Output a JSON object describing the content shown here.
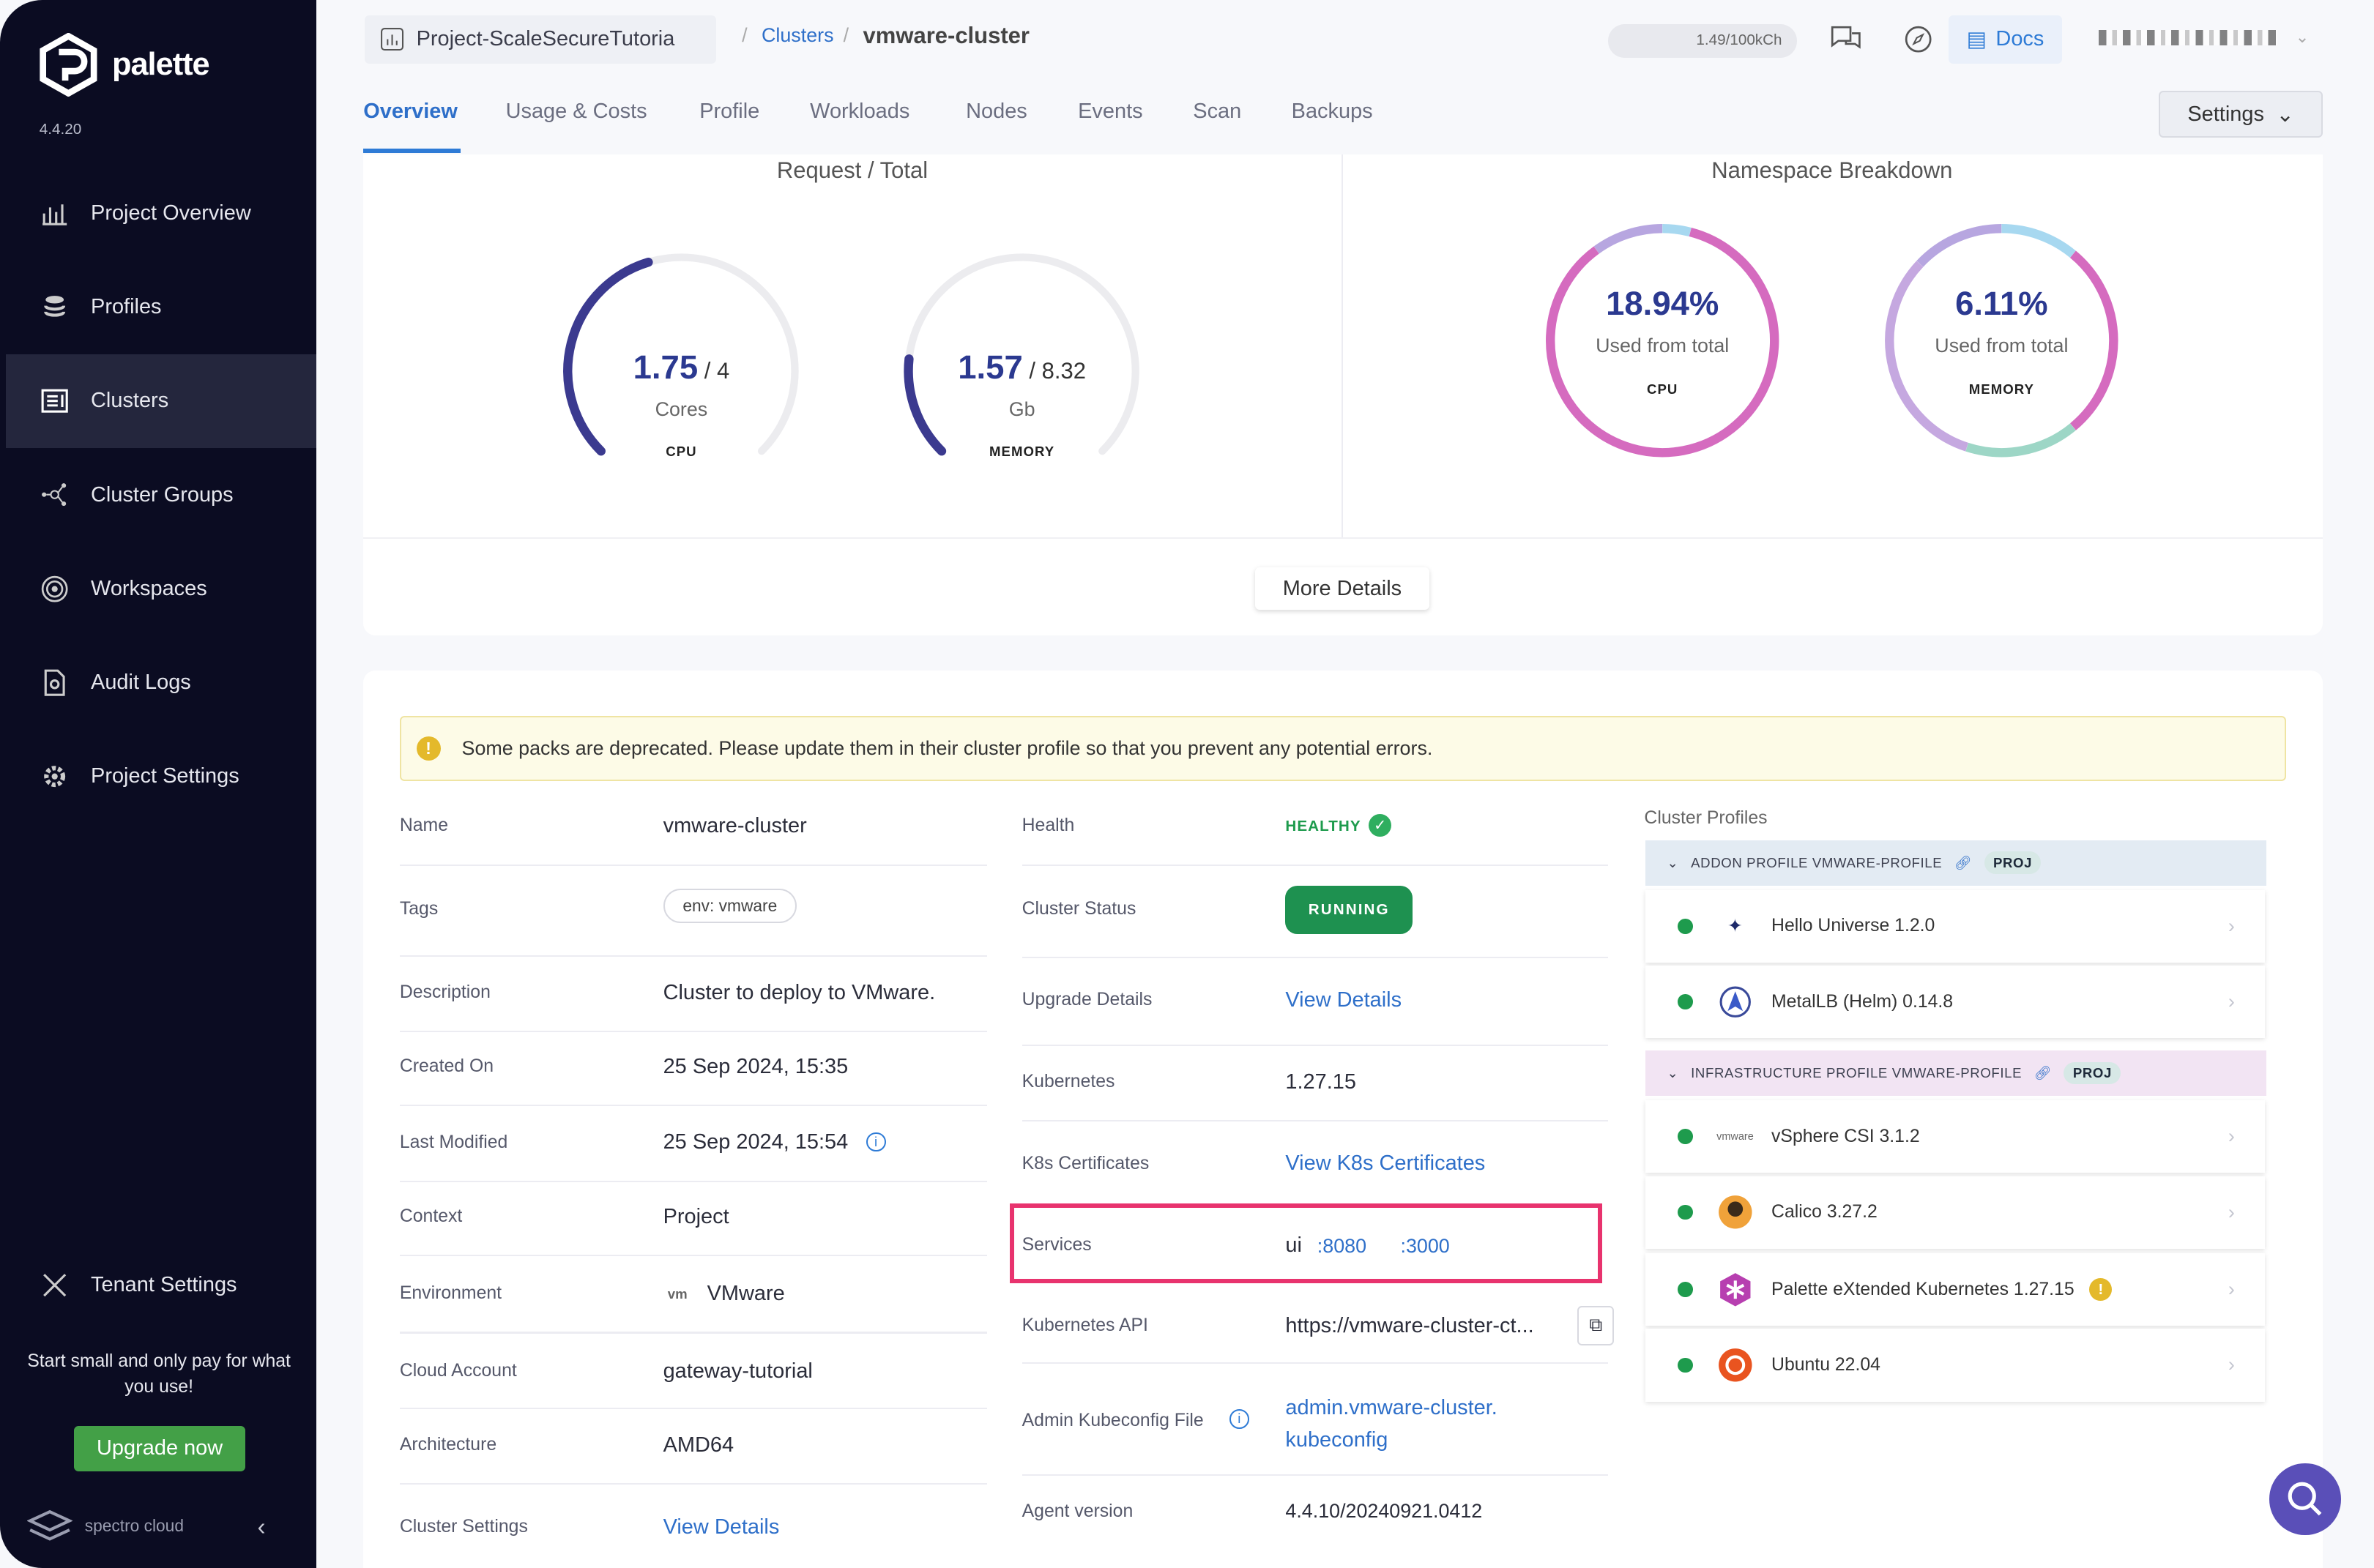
{
  "sidebar": {
    "brand": "palette",
    "version": "4.4.20",
    "items": [
      {
        "label": "Project Overview",
        "icon": "bar-chart-icon"
      },
      {
        "label": "Profiles",
        "icon": "stack-icon"
      },
      {
        "label": "Clusters",
        "icon": "clusters-icon",
        "active": true
      },
      {
        "label": "Cluster Groups",
        "icon": "network-icon"
      },
      {
        "label": "Workspaces",
        "icon": "target-icon"
      },
      {
        "label": "Audit Logs",
        "icon": "document-search-icon"
      },
      {
        "label": "Project Settings",
        "icon": "gear-icon"
      }
    ],
    "tenant_settings": "Tenant Settings",
    "promo": "Start small and only pay for what you use!",
    "upgrade": "Upgrade now",
    "footer_brand": "spectro cloud"
  },
  "header": {
    "project": "Project-ScaleSecureTutoria",
    "breadcrumb_link": "Clusters",
    "breadcrumb_current": "vmware-cluster",
    "usage": "1.49/100kCh",
    "docs": "Docs"
  },
  "tabs": [
    "Overview",
    "Usage & Costs",
    "Profile",
    "Workloads",
    "Nodes",
    "Events",
    "Scan",
    "Backups"
  ],
  "settings_button": "Settings",
  "request_total": {
    "title": "Request / Total",
    "cpu": {
      "used": "1.75",
      "total": "4",
      "unit": "Cores",
      "label": "CPU",
      "fraction": 0.4375
    },
    "memory": {
      "used": "1.57",
      "total": "8.32",
      "unit": "Gb",
      "label": "MEMORY",
      "fraction": 0.189
    }
  },
  "namespace_breakdown": {
    "title": "Namespace Breakdown",
    "cpu": {
      "percent": "18.94%",
      "caption": "Used from total",
      "label": "CPU"
    },
    "memory": {
      "percent": "6.11%",
      "caption": "Used from total",
      "label": "MEMORY"
    }
  },
  "more_details": "More Details",
  "warning": "Some packs are deprecated. Please update them in their cluster profile so that you prevent any potential errors.",
  "details_left": [
    {
      "label": "Name",
      "value": "vmware-cluster"
    },
    {
      "label": "Tags",
      "value": "env: vmware"
    },
    {
      "label": "Description",
      "value": "Cluster to deploy to VMware."
    },
    {
      "label": "Created On",
      "value": "25 Sep 2024, 15:35"
    },
    {
      "label": "Last Modified",
      "value": "25 Sep 2024, 15:54"
    },
    {
      "label": "Context",
      "value": "Project"
    },
    {
      "label": "Environment",
      "value": "VMware"
    },
    {
      "label": "Cloud Account",
      "value": "gateway-tutorial"
    },
    {
      "label": "Architecture",
      "value": "AMD64"
    },
    {
      "label": "Cluster Settings",
      "value": "View Details"
    }
  ],
  "details_mid": [
    {
      "label": "Health",
      "value": "HEALTHY"
    },
    {
      "label": "Cluster Status",
      "value": "RUNNING"
    },
    {
      "label": "Upgrade Details",
      "value": "View Details"
    },
    {
      "label": "Kubernetes",
      "value": "1.27.15"
    },
    {
      "label": "K8s Certificates",
      "value": "View K8s Certificates"
    },
    {
      "label": "Services",
      "value": "ui",
      "ports": [
        ":8080",
        ":3000"
      ]
    },
    {
      "label": "Kubernetes API",
      "value": "https://vmware-cluster-ct..."
    },
    {
      "label": "Admin Kubeconfig File",
      "value": "admin.vmware-cluster.kubeconfig"
    },
    {
      "label": "Agent version",
      "value": "4.4.10/20240921.0412"
    }
  ],
  "cluster_profiles": {
    "title": "Cluster Profiles",
    "groups": [
      {
        "name": "ADDON PROFILE VMWARE-PROFILE",
        "badge": "PROJ",
        "packs": [
          "Hello Universe 1.2.0",
          "MetalLB (Helm) 0.14.8"
        ]
      },
      {
        "name": "INFRASTRUCTURE PROFILE VMWARE-PROFILE",
        "badge": "PROJ",
        "packs": [
          "vSphere CSI 3.1.2",
          "Calico 3.27.2",
          "Palette eXtended Kubernetes 1.27.15",
          "Ubuntu 22.04"
        ]
      }
    ]
  },
  "colors": {
    "accent": "#2e6fc9",
    "healthy": "#1e9b4d",
    "highlight": "#e8336e",
    "gauge": "#3b3a8f",
    "donut": "#d56bbf"
  }
}
